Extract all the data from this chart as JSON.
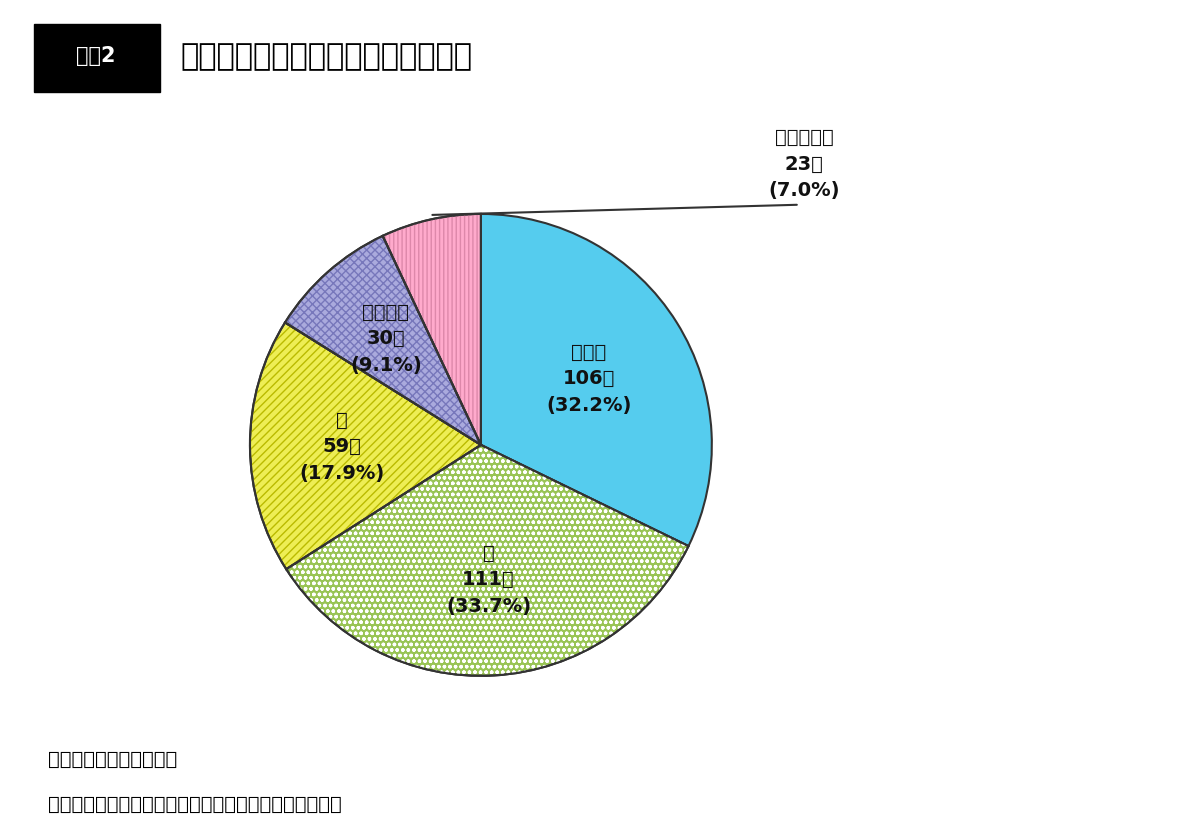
{
  "title_box": "図表2",
  "title_text": "親族間殺人の被疑者と被害者の関係",
  "segments": [
    {
      "label_line1": "配偶者",
      "label_line2": "106件",
      "label_line3": "(32.2%)",
      "value": 106,
      "facecolor": "#55CCEE",
      "hatch": "",
      "hatch_edgecolor": "#444444",
      "external": false,
      "label_r": 0.55
    },
    {
      "label_line1": "親",
      "label_line2": "111件",
      "label_line3": "(33.7%)",
      "value": 111,
      "facecolor": "#99C455",
      "hatch": "ooo",
      "hatch_edgecolor": "#ffffff",
      "external": false,
      "label_r": 0.58
    },
    {
      "label_line1": "子",
      "label_line2": "59件",
      "label_line3": "(17.9%)",
      "value": 59,
      "facecolor": "#EEEE55",
      "hatch": "////",
      "hatch_edgecolor": "#BBBB00",
      "external": false,
      "label_r": 0.6
    },
    {
      "label_line1": "兄弟姉妹",
      "label_line2": "30件",
      "label_line3": "(9.1%)",
      "value": 30,
      "facecolor": "#AAAADD",
      "hatch": "xxxx",
      "hatch_edgecolor": "#7777BB",
      "external": false,
      "label_r": 0.62
    },
    {
      "label_line1": "その他親族",
      "label_line2": "23件",
      "label_line3": "(7.0%)",
      "value": 23,
      "facecolor": "#FFAACC",
      "hatch": "||||",
      "hatch_edgecolor": "#DD88AA",
      "external": true,
      "label_r": 0.0
    }
  ],
  "note1": "注１：解決事件を除く。",
  "note2": "　２：続柄は、被害者からみた被疑者との続柄である。",
  "bg_color": "#ffffff",
  "label_fontsize": 14,
  "title_fontsize": 22,
  "note_fontsize": 14
}
